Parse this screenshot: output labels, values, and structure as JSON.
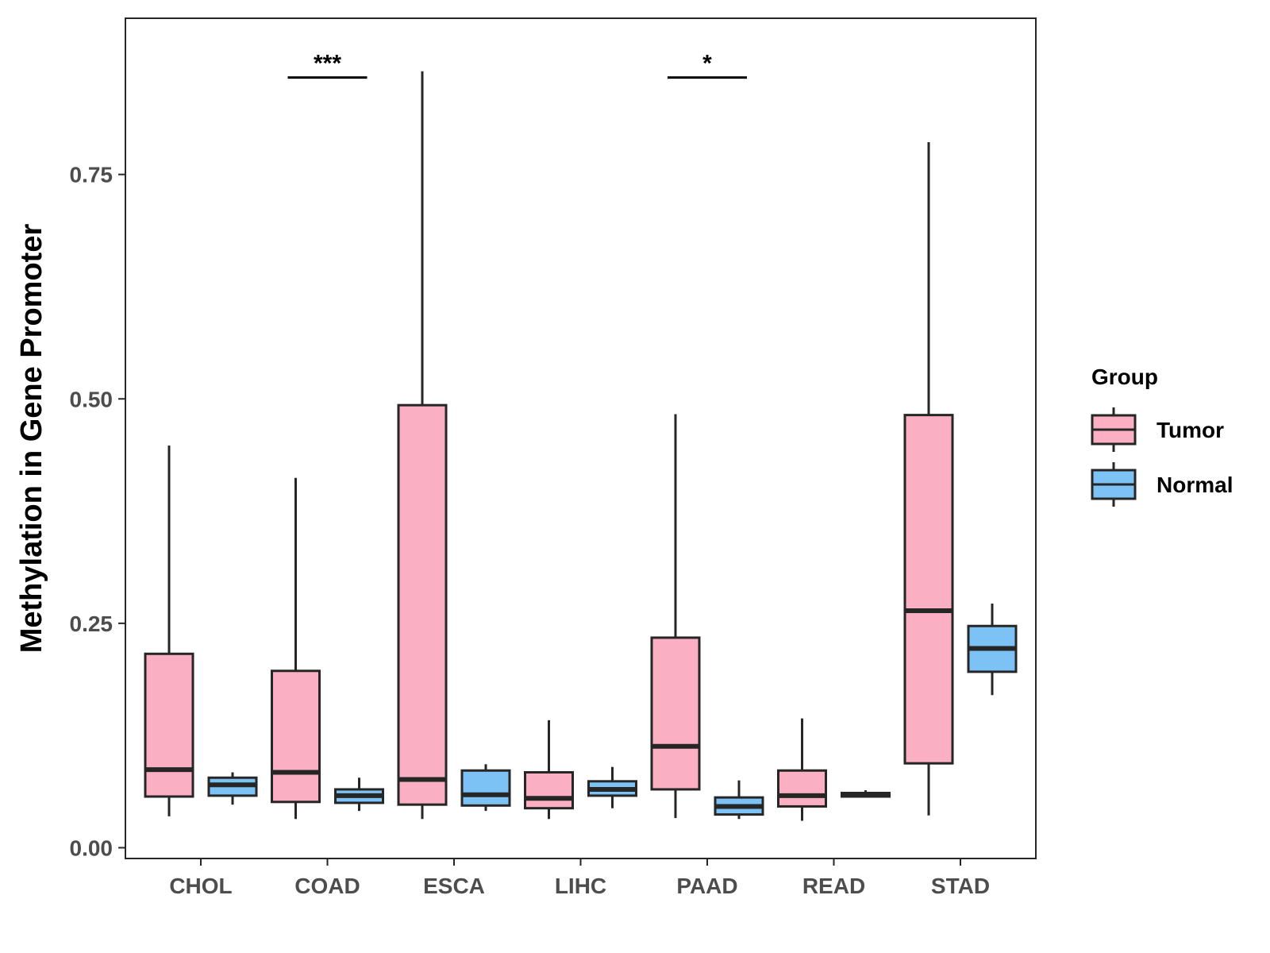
{
  "chart_data": {
    "type": "boxplot",
    "title": "",
    "xlabel": "",
    "ylabel": "Methylation in Gene Promoter",
    "ylim": [
      -0.012,
      0.924
    ],
    "yticks": [
      0.0,
      0.25,
      0.5,
      0.75
    ],
    "ytick_labels": [
      "0.00",
      "0.25",
      "0.50",
      "0.75"
    ],
    "categories": [
      "CHOL",
      "COAD",
      "ESCA",
      "LIHC",
      "PAAD",
      "READ",
      "STAD"
    ],
    "series": [
      {
        "name": "Tumor",
        "color": "#FBAFC3",
        "boxes": [
          {
            "min": 0.035,
            "q1": 0.057,
            "median": 0.087,
            "q3": 0.216,
            "max": 0.448
          },
          {
            "min": 0.032,
            "q1": 0.051,
            "median": 0.084,
            "q3": 0.197,
            "max": 0.412
          },
          {
            "min": 0.032,
            "q1": 0.048,
            "median": 0.076,
            "q3": 0.493,
            "max": 0.865
          },
          {
            "min": 0.032,
            "q1": 0.044,
            "median": 0.055,
            "q3": 0.084,
            "max": 0.142
          },
          {
            "min": 0.033,
            "q1": 0.065,
            "median": 0.113,
            "q3": 0.234,
            "max": 0.483
          },
          {
            "min": 0.03,
            "q1": 0.046,
            "median": 0.058,
            "q3": 0.086,
            "max": 0.144
          },
          {
            "min": 0.036,
            "q1": 0.094,
            "median": 0.264,
            "q3": 0.482,
            "max": 0.786
          }
        ]
      },
      {
        "name": "Normal",
        "color": "#7CC2F5",
        "boxes": [
          {
            "min": 0.048,
            "q1": 0.058,
            "median": 0.07,
            "q3": 0.078,
            "max": 0.084
          },
          {
            "min": 0.041,
            "q1": 0.05,
            "median": 0.058,
            "q3": 0.065,
            "max": 0.078
          },
          {
            "min": 0.041,
            "q1": 0.047,
            "median": 0.059,
            "q3": 0.086,
            "max": 0.093
          },
          {
            "min": 0.044,
            "q1": 0.058,
            "median": 0.065,
            "q3": 0.074,
            "max": 0.09
          },
          {
            "min": 0.032,
            "q1": 0.037,
            "median": 0.046,
            "q3": 0.056,
            "max": 0.075
          },
          {
            "min": 0.056,
            "q1": 0.057,
            "median": 0.059,
            "q3": 0.061,
            "max": 0.064
          },
          {
            "min": 0.17,
            "q1": 0.196,
            "median": 0.222,
            "q3": 0.247,
            "max": 0.272
          }
        ]
      }
    ],
    "annotations": [
      {
        "category": "COAD",
        "text": "***",
        "y": 0.858
      },
      {
        "category": "PAAD",
        "text": "*",
        "y": 0.858
      }
    ],
    "legend": {
      "title": "Group",
      "position": "right",
      "labels": [
        "Tumor",
        "Normal"
      ]
    },
    "grid": false
  },
  "colors": {
    "tumor": "#FBAFC3",
    "normal": "#7CC2F5",
    "outline": "#262626",
    "axis_text": "#4d4d4d"
  }
}
